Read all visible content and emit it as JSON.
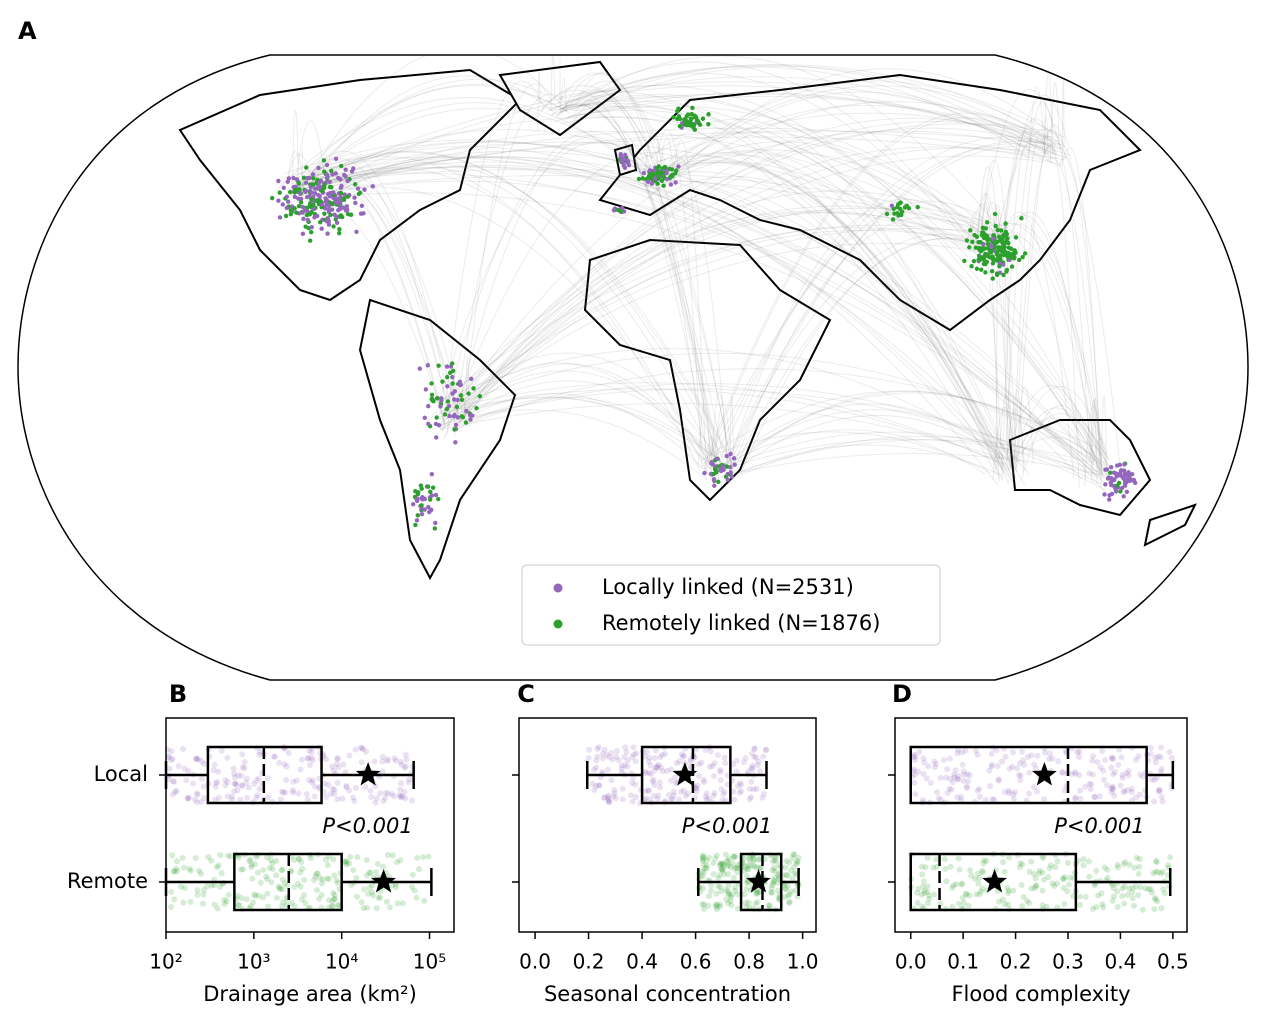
{
  "map": {
    "label": "A",
    "legend": [
      {
        "name": "Locally linked (N=2531)",
        "color": "#9467bd"
      },
      {
        "name": "Remotely linked (N=1876)",
        "color": "#2ca02c"
      }
    ]
  },
  "chart_data": [
    {
      "type": "box",
      "label": "B",
      "xlabel": "Drainage area (km²)",
      "annotation": "P<0.001",
      "log_x": true,
      "xlim": [
        100,
        190000
      ],
      "xticks": [
        {
          "value": 100,
          "label": "10²"
        },
        {
          "value": 1000,
          "label": "10³"
        },
        {
          "value": 10000,
          "label": "10⁴"
        },
        {
          "value": 100000,
          "label": "10⁵"
        }
      ],
      "categories": [
        "Local",
        "Remote"
      ],
      "colors": [
        "#9467bd",
        "#2ca02c"
      ],
      "boxes": [
        {
          "low": 100,
          "q1": 300,
          "median": 1300,
          "q3": 5900,
          "high": 66000,
          "mean": 20000
        },
        {
          "low": 100,
          "q1": 600,
          "median": 2500,
          "q3": 10000,
          "high": 105000,
          "mean": 30000
        }
      ]
    },
    {
      "type": "box",
      "label": "C",
      "xlabel": "Seasonal concentration",
      "annotation": "P<0.001",
      "log_x": false,
      "xlim": [
        -0.06,
        1.05
      ],
      "xticks": [
        {
          "value": 0,
          "label": "0.0"
        },
        0.2,
        0.4,
        0.6,
        0.8,
        {
          "value": 1,
          "label": "1.0"
        }
      ],
      "colors": [
        "#9467bd",
        "#2ca02c"
      ],
      "boxes": [
        {
          "low": 0.195,
          "q1": 0.4,
          "median": 0.59,
          "q3": 0.73,
          "high": 0.865,
          "mean": 0.56
        },
        {
          "low": 0.61,
          "q1": 0.77,
          "median": 0.85,
          "q3": 0.92,
          "high": 0.985,
          "mean": 0.835
        }
      ]
    },
    {
      "type": "box",
      "label": "D",
      "xlabel": "Flood complexity",
      "annotation": "P<0.001",
      "log_x": false,
      "xlim": [
        -0.03,
        0.527
      ],
      "xticks": [
        {
          "value": 0,
          "label": "0.0"
        },
        0.1,
        0.2,
        0.3,
        0.4,
        0.5
      ],
      "colors": [
        "#9467bd",
        "#2ca02c"
      ],
      "boxes": [
        {
          "low": 0,
          "q1": 0,
          "median": 0.3,
          "q3": 0.45,
          "high": 0.5,
          "mean": 0.255
        },
        {
          "low": 0,
          "q1": 0,
          "median": 0.055,
          "q3": 0.315,
          "high": 0.495,
          "mean": 0.16
        }
      ]
    }
  ]
}
